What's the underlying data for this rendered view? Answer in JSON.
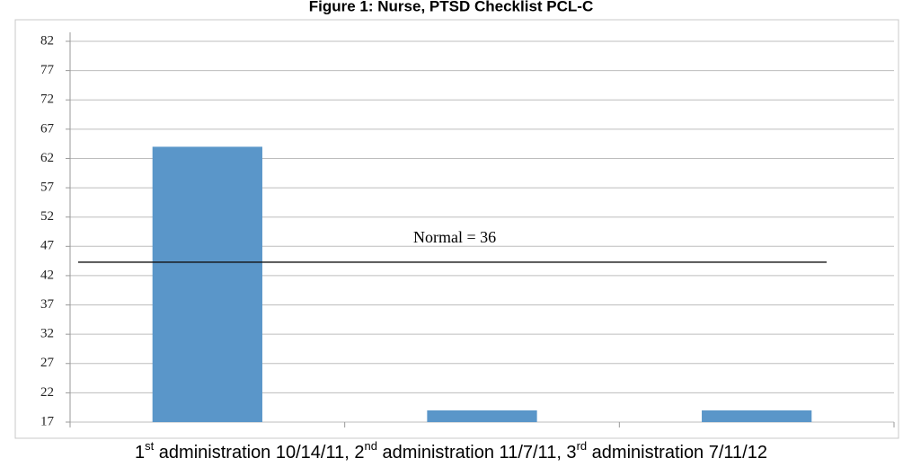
{
  "chart_data": {
    "type": "bar",
    "title": "Figure 1: Nurse, PTSD Checklist PCL-C",
    "x_label_parts": [
      "1",
      "st",
      " administration 10/14/11, 2",
      "nd",
      " administration 11/7/11, 3",
      "rd",
      " administration 7/11/12"
    ],
    "categories": [
      null,
      null,
      null
    ],
    "values": [
      64,
      19,
      19
    ],
    "color": "#5a96c9",
    "ylim": [
      17,
      82
    ],
    "yticks": [
      17,
      22,
      27,
      32,
      37,
      42,
      47,
      52,
      57,
      62,
      67,
      72,
      77,
      82
    ],
    "grid": true,
    "reference_line": {
      "value": 44.3,
      "label": "Normal = 36"
    }
  }
}
